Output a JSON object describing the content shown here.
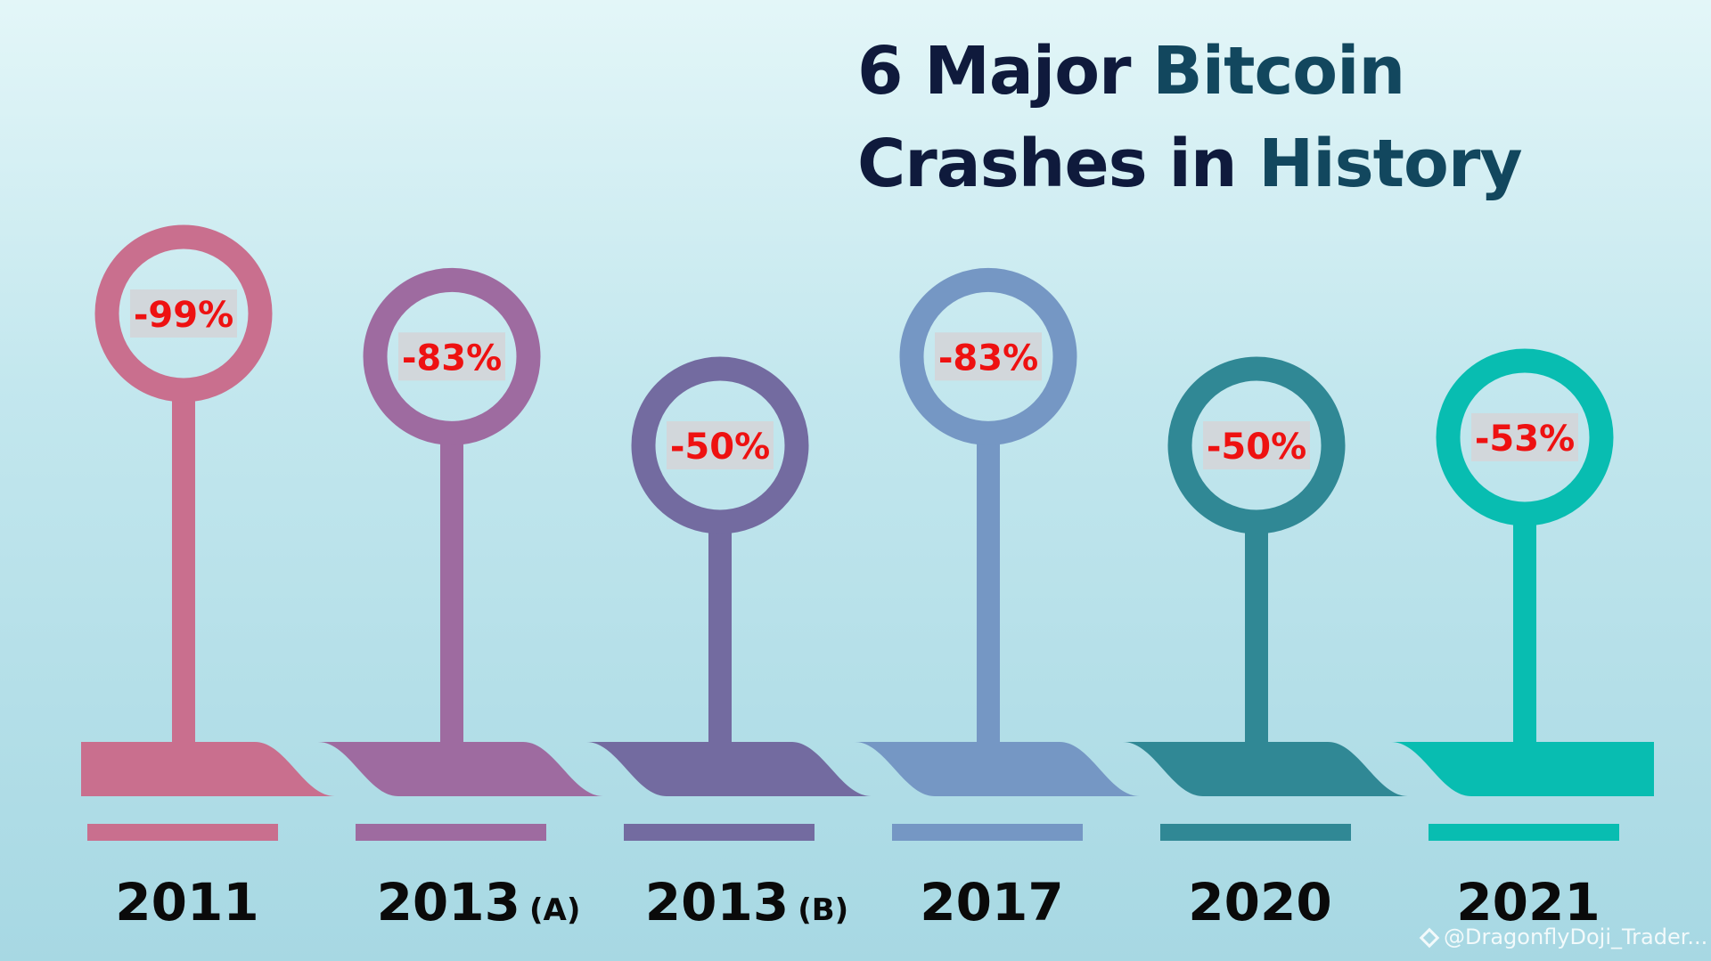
{
  "title": {
    "line1_part1": "6 Major",
    "line1_part2": "Bitcoin",
    "line2_part1": "Crashes in",
    "line2_part2": "History"
  },
  "watermark": "@DragonflyDoji_Trader...",
  "chart_data": {
    "type": "bar",
    "title": "6 Major Bitcoin Crashes in History",
    "categories": [
      "2011",
      "2013 (A)",
      "2013 (B)",
      "2017",
      "2020",
      "2021"
    ],
    "category_labels": [
      {
        "year": "2011",
        "suffix": ""
      },
      {
        "year": "2013",
        "suffix": "(A)"
      },
      {
        "year": "2013",
        "suffix": "(B)"
      },
      {
        "year": "2017",
        "suffix": ""
      },
      {
        "year": "2020",
        "suffix": ""
      },
      {
        "year": "2021",
        "suffix": ""
      }
    ],
    "values": [
      -99,
      -83,
      -50,
      -83,
      -50,
      -53
    ],
    "value_labels": [
      "-99%",
      "-83%",
      "-50%",
      "-83%",
      "-50%",
      "-53%"
    ],
    "unit": "%",
    "colors": [
      "#c96f8e",
      "#9e6ba0",
      "#736ba0",
      "#7597c4",
      "#308895",
      "#08bdb1"
    ],
    "xlabel": "",
    "ylabel": "",
    "grid": false,
    "legend": "none"
  }
}
